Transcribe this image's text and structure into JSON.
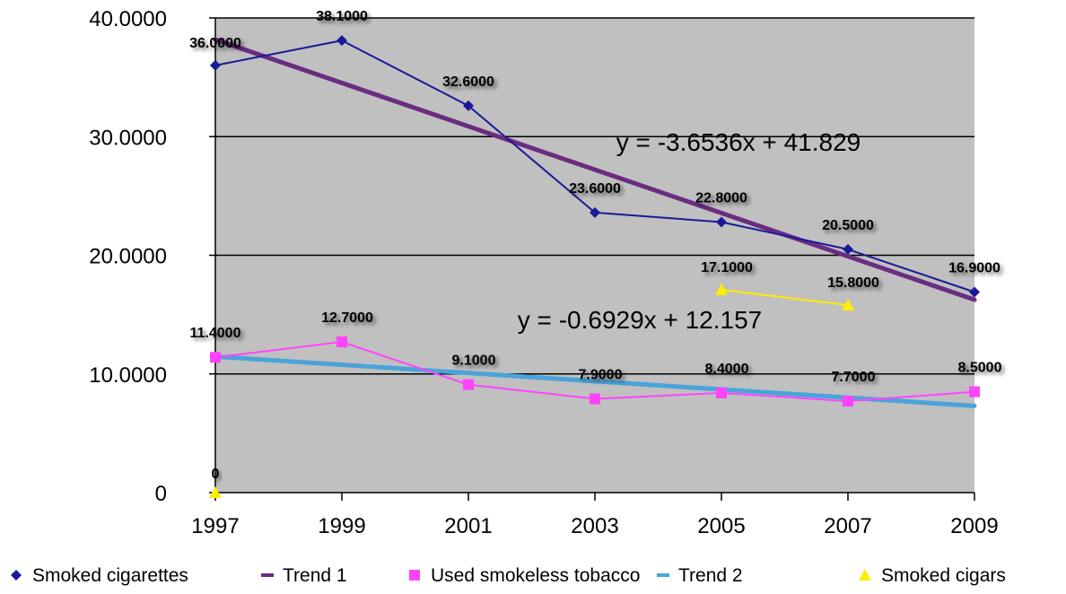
{
  "chart_data": {
    "type": "line",
    "title": "",
    "xlabel": "",
    "ylabel": "",
    "x": [
      1997,
      1999,
      2001,
      2003,
      2005,
      2007,
      2009
    ],
    "x_tick_labels": [
      "1997",
      "1999",
      "2001",
      "2003",
      "2005",
      "2007",
      "2009"
    ],
    "ylim": [
      0,
      40
    ],
    "y_ticks": [
      0,
      10,
      20,
      30,
      40
    ],
    "y_tick_labels": [
      "0",
      "10.0000",
      "20.0000",
      "30.0000",
      "40.0000"
    ],
    "grid": "horizontal",
    "plot_background": "#c0c0c0",
    "legend_position": "bottom",
    "series": [
      {
        "name": "Smoked cigarettes",
        "kind": "data",
        "marker": "diamond",
        "color": "#1a1a99",
        "values": [
          36.0,
          38.1,
          32.6,
          23.6,
          22.8,
          20.5,
          16.9
        ],
        "labels": [
          "36.0000",
          "38.1000",
          "32.6000",
          "23.6000",
          "22.8000",
          "20.5000",
          "16.9000"
        ]
      },
      {
        "name": "Trend 1",
        "kind": "trend",
        "color": "#6a2c80",
        "equation": "y = -3.6536x + 41.829",
        "slope": -3.6536,
        "intercept": 41.829
      },
      {
        "name": "Used smokeless tobacco",
        "kind": "data",
        "marker": "square",
        "color": "#ff44ff",
        "values": [
          11.4,
          12.7,
          9.1,
          7.9,
          8.4,
          7.7,
          8.5
        ],
        "labels": [
          "11.4000",
          "12.7000",
          "9.1000",
          "7.9000",
          "8.4000",
          "7.7000",
          "8.5000"
        ]
      },
      {
        "name": "Trend 2",
        "kind": "trend",
        "color": "#4aa3d9",
        "equation": "y = -0.6929x + 12.157",
        "slope": -0.6929,
        "intercept": 12.157
      },
      {
        "name": "Smoked cigars",
        "kind": "data",
        "marker": "triangle",
        "color": "#ffee00",
        "values": [
          0,
          null,
          null,
          null,
          17.1,
          15.8,
          null
        ],
        "labels": [
          "0",
          null,
          null,
          null,
          "17.1000",
          "15.8000",
          null
        ]
      }
    ]
  }
}
